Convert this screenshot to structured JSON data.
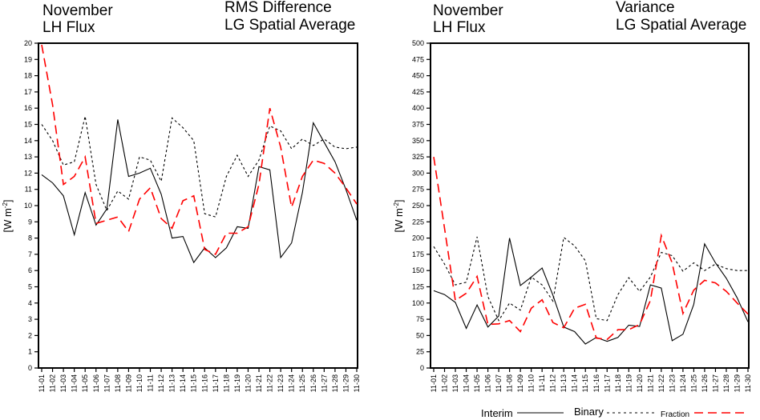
{
  "legend": {
    "entries": [
      {
        "label": "Interim",
        "style": "solid",
        "color": "#000000"
      },
      {
        "label": "Binary",
        "style": "dotted",
        "color": "#000000"
      },
      {
        "label": "Fraction",
        "style": "dashed",
        "color": "#ff0000"
      }
    ]
  },
  "chart_data": [
    {
      "type": "line",
      "title_left": [
        "November",
        "LH Flux"
      ],
      "title_right": [
        "RMS Difference",
        "LG Spatial Average"
      ],
      "xlabel": "",
      "ylabel": "[W m-2]",
      "ylim": [
        0,
        20
      ],
      "yticks": [
        0,
        1,
        2,
        3,
        4,
        5,
        6,
        7,
        8,
        9,
        10,
        11,
        12,
        13,
        14,
        15,
        16,
        17,
        18,
        19,
        20
      ],
      "grid": false,
      "x": [
        "11-01",
        "11-02",
        "11-03",
        "11-04",
        "11-05",
        "11-06",
        "11-07",
        "11-08",
        "11-09",
        "11-10",
        "11-11",
        "11-12",
        "11-13",
        "11-14",
        "11-15",
        "11-16",
        "11-17",
        "11-18",
        "11-19",
        "11-20",
        "11-21",
        "11-22",
        "11-23",
        "11-24",
        "11-25",
        "11-26",
        "11-27",
        "11-28",
        "11-29",
        "11-30"
      ],
      "series": [
        {
          "name": "Interim",
          "values": [
            11.9,
            11.4,
            10.6,
            8.2,
            10.8,
            8.8,
            9.8,
            15.3,
            11.8,
            12.0,
            12.3,
            10.7,
            8.0,
            8.1,
            6.5,
            7.4,
            6.8,
            7.4,
            8.7,
            8.6,
            12.4,
            12.2,
            6.8,
            7.7,
            10.8,
            15.1,
            13.9,
            12.7,
            11.0,
            9.1
          ]
        },
        {
          "name": "Binary",
          "values": [
            15.0,
            14.0,
            12.5,
            12.7,
            15.5,
            11.3,
            9.7,
            10.9,
            10.4,
            13.0,
            12.8,
            11.5,
            15.4,
            14.8,
            14.0,
            9.5,
            9.3,
            11.8,
            13.1,
            11.8,
            12.8,
            14.9,
            14.6,
            13.5,
            14.1,
            13.7,
            14.1,
            13.6,
            13.5,
            13.6
          ]
        },
        {
          "name": "Fraction",
          "values": [
            19.9,
            16.2,
            11.3,
            11.8,
            13.0,
            8.9,
            9.1,
            9.3,
            8.4,
            10.4,
            11.1,
            9.2,
            8.6,
            10.3,
            10.6,
            7.3,
            7.0,
            8.3,
            8.3,
            8.7,
            11.3,
            16.0,
            13.6,
            9.9,
            11.8,
            12.8,
            12.6,
            12.0,
            11.1,
            10.1
          ]
        }
      ]
    },
    {
      "type": "line",
      "title_left": [
        "November",
        "LH Flux"
      ],
      "title_right": [
        "Variance",
        "LG Spatial Average"
      ],
      "xlabel": "",
      "ylabel": "[W m-2]",
      "ylim": [
        0,
        500
      ],
      "yticks": [
        0,
        25,
        50,
        75,
        100,
        125,
        150,
        175,
        200,
        225,
        250,
        275,
        300,
        325,
        350,
        375,
        400,
        425,
        450,
        475,
        500
      ],
      "grid": false,
      "x": [
        "11-01",
        "11-02",
        "11-03",
        "11-04",
        "11-05",
        "11-06",
        "11-07",
        "11-08",
        "11-09",
        "11-10",
        "11-11",
        "11-12",
        "11-13",
        "11-14",
        "11-15",
        "11-16",
        "11-17",
        "11-18",
        "11-19",
        "11-20",
        "11-21",
        "11-22",
        "11-23",
        "11-24",
        "11-25",
        "11-26",
        "11-27",
        "11-28",
        "11-29",
        "11-30"
      ],
      "series": [
        {
          "name": "Interim",
          "values": [
            119,
            113,
            101,
            61,
            97,
            63,
            80,
            200,
            127,
            140,
            154,
            112,
            63,
            56,
            37,
            47,
            41,
            47,
            66,
            64,
            128,
            123,
            42,
            52,
            98,
            191,
            162,
            138,
            108,
            71
          ]
        },
        {
          "name": "Binary",
          "values": [
            187,
            160,
            128,
            132,
            202,
            110,
            73,
            100,
            89,
            140,
            128,
            103,
            201,
            188,
            165,
            76,
            73,
            113,
            139,
            118,
            140,
            178,
            173,
            149,
            162,
            150,
            160,
            153,
            150,
            150
          ]
        },
        {
          "name": "Fraction",
          "values": [
            325,
            215,
            104,
            115,
            141,
            67,
            68,
            73,
            56,
            92,
            105,
            70,
            62,
            92,
            98,
            46,
            44,
            59,
            59,
            67,
            104,
            204,
            162,
            84,
            120,
            135,
            131,
            118,
            100,
            83
          ]
        }
      ]
    }
  ]
}
